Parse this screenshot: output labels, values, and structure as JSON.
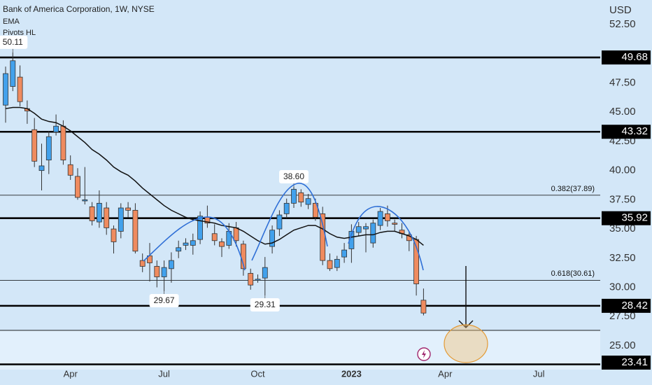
{
  "chart_data": {
    "type": "candlestick",
    "title": "Bank of America Corporation, 1W, NYSE",
    "indicators": [
      "EMA",
      "Pivots HL"
    ],
    "currency": "USD",
    "up_color": "#42a1ec",
    "down_color": "#ef8b5f",
    "ema_color": "#111111",
    "categories": [
      null,
      null,
      null,
      null,
      null,
      null,
      null,
      null,
      null,
      "Apr",
      null,
      null,
      null,
      null,
      null,
      null,
      null,
      null,
      null,
      null,
      null,
      null,
      "Jul",
      null,
      null,
      null,
      null,
      null,
      null,
      null,
      null,
      null,
      null,
      null,
      null,
      "Oct",
      null,
      null,
      null,
      null,
      null,
      null,
      null,
      null,
      null,
      null,
      null,
      null,
      "2023",
      null,
      null,
      null,
      null,
      null,
      null,
      null,
      null,
      null,
      null,
      null,
      null,
      "Apr",
      null,
      null,
      null,
      null,
      null,
      null,
      null,
      null,
      null,
      null,
      null,
      null,
      "Jul",
      null,
      null,
      null,
      null,
      null,
      null,
      null
    ],
    "open": [
      45.6,
      47.2,
      48.0,
      45.3,
      43.5,
      40.0,
      40.9,
      43.3,
      43.8,
      40.5,
      39.5,
      37.4,
      36.9,
      35.6,
      36.8,
      35.0,
      34.8,
      36.8,
      36.6,
      32.3,
      32.7,
      31.8,
      30.9,
      31.6,
      33.1,
      33.6,
      33.6,
      34.1,
      36.0,
      34.6,
      33.9,
      33.6,
      35.1,
      33.7,
      31.2,
      30.6,
      30.8,
      33.5,
      35.0,
      36.3,
      37.2,
      38.1,
      37.1,
      37.2,
      36.3,
      32.3,
      31.7,
      32.6,
      33.3,
      34.7,
      35.0,
      33.8,
      35.3,
      36.3,
      35.5,
      34.9,
      34.5,
      34.1,
      28.9,
      null,
      null,
      null,
      null,
      null,
      null,
      null,
      null,
      null,
      null,
      null,
      null,
      null,
      null,
      null,
      null,
      null,
      null,
      null,
      null,
      null,
      null,
      null
    ],
    "high": [
      48.9,
      50.11,
      49.0,
      46.0,
      44.5,
      42.3,
      43.4,
      44.8,
      44.3,
      41.3,
      40.2,
      40.3,
      37.3,
      38.3,
      37.3,
      35.3,
      37.2,
      37.3,
      37.2,
      32.9,
      33.8,
      32.3,
      32.3,
      33.0,
      34.0,
      34.2,
      34.6,
      36.5,
      37.0,
      35.4,
      34.2,
      35.5,
      35.6,
      34.0,
      31.6,
      31.1,
      32.6,
      35.3,
      36.6,
      37.6,
      38.6,
      38.4,
      38.0,
      37.6,
      36.9,
      32.9,
      32.7,
      33.8,
      35.4,
      35.6,
      35.5,
      35.8,
      36.8,
      37.0,
      35.8,
      35.5,
      34.8,
      34.4,
      29.9,
      null,
      null,
      null,
      null,
      null,
      null,
      null,
      null,
      null,
      null,
      null,
      null,
      null,
      null,
      null,
      null,
      null,
      null,
      null,
      null,
      null,
      null,
      null
    ],
    "low": [
      44.1,
      46.8,
      45.5,
      44.0,
      40.3,
      38.3,
      39.7,
      43.0,
      40.5,
      39.2,
      37.5,
      37.1,
      35.3,
      35.1,
      34.5,
      32.9,
      34.2,
      36.0,
      32.9,
      31.3,
      30.5,
      30.0,
      29.67,
      30.4,
      32.5,
      33.2,
      32.8,
      33.7,
      35.1,
      33.6,
      32.6,
      33.3,
      33.5,
      31.0,
      29.8,
      30.4,
      29.31,
      32.9,
      34.4,
      35.9,
      36.8,
      36.9,
      36.7,
      35.7,
      31.9,
      31.4,
      31.4,
      32.1,
      32.1,
      34.4,
      33.0,
      33.4,
      34.9,
      35.2,
      34.8,
      34.2,
      33.1,
      29.3,
      27.6,
      null,
      null,
      null,
      null,
      null,
      null,
      null,
      null,
      null,
      null,
      null,
      null,
      null,
      null,
      null,
      null,
      null,
      null,
      null,
      null,
      null,
      null,
      null
    ],
    "close": [
      48.3,
      49.4,
      45.9,
      45.1,
      40.8,
      40.4,
      42.9,
      43.8,
      40.9,
      39.6,
      37.7,
      37.5,
      35.7,
      37.2,
      35.1,
      33.9,
      36.8,
      36.6,
      33.1,
      31.8,
      32.1,
      30.9,
      31.7,
      32.3,
      33.4,
      33.8,
      34.0,
      36.1,
      35.5,
      34.0,
      33.5,
      34.8,
      34.0,
      31.6,
      30.2,
      30.7,
      31.7,
      34.9,
      36.2,
      37.2,
      38.4,
      37.3,
      37.6,
      36.0,
      32.3,
      31.6,
      32.4,
      33.2,
      34.8,
      35.2,
      35.2,
      35.5,
      36.5,
      35.7,
      35.4,
      34.6,
      34.0,
      30.3,
      27.8,
      null,
      null,
      null,
      null,
      null,
      null,
      null,
      null,
      null,
      null,
      null,
      null,
      null,
      null,
      null,
      null,
      null,
      null,
      null,
      null,
      null,
      null,
      null
    ],
    "ema": [
      45.3,
      45.4,
      45.4,
      45.3,
      44.9,
      44.4,
      44.2,
      44.1,
      43.8,
      43.4,
      42.9,
      42.4,
      41.8,
      41.4,
      40.9,
      40.3,
      39.9,
      39.6,
      39.1,
      38.5,
      38.0,
      37.5,
      37.0,
      36.6,
      36.3,
      36.0,
      35.8,
      35.7,
      35.6,
      35.5,
      35.3,
      35.2,
      35.1,
      34.8,
      34.4,
      34.0,
      33.7,
      33.8,
      34.1,
      34.5,
      34.9,
      35.1,
      35.3,
      35.3,
      35.0,
      34.6,
      34.3,
      34.2,
      34.3,
      34.4,
      34.5,
      34.5,
      34.7,
      34.8,
      34.8,
      34.6,
      34.4,
      34.1,
      33.6,
      null,
      null,
      null,
      null,
      null,
      null,
      null,
      null,
      null,
      null,
      null,
      null,
      null,
      null,
      null,
      null,
      null,
      null,
      null,
      null,
      null,
      null,
      null
    ],
    "pivots": {
      "highs": [
        50.11,
        {
          "value": 38.6,
          "label": "38.60"
        }
      ],
      "lows": [
        29.67,
        29.31
      ]
    },
    "levels": [
      {
        "value": 49.68,
        "style": "thick"
      },
      {
        "value": 43.32,
        "style": "thick"
      },
      {
        "value": 37.89,
        "style": "thin",
        "label": "0.382(37.89)"
      },
      {
        "value": 35.92,
        "style": "thick"
      },
      {
        "value": 30.61,
        "style": "thin",
        "label": "0.618(30.61)"
      },
      {
        "value": 28.42,
        "style": "thick"
      },
      {
        "value": 26.32,
        "style": "thin",
        "fill_below": true
      },
      {
        "value": 23.41,
        "style": "thick"
      }
    ],
    "ylim": [
      22.96,
      54.6
    ],
    "yticks": [
      {
        "value": 25,
        "label": "25.00"
      },
      {
        "value": 27.5,
        "label": "27.50"
      },
      {
        "value": 30,
        "label": "30.00"
      },
      {
        "value": 32.5,
        "label": "32.50"
      },
      {
        "value": 35,
        "label": "35.00"
      },
      {
        "value": 37.5,
        "label": "37.50"
      },
      {
        "value": 40,
        "label": "40.00"
      },
      {
        "value": 42.5,
        "label": "42.50"
      },
      {
        "value": 45,
        "label": "45.00"
      },
      {
        "value": 47.5,
        "label": "47.50"
      },
      {
        "value": 52.5,
        "label": "52.50"
      }
    ]
  }
}
